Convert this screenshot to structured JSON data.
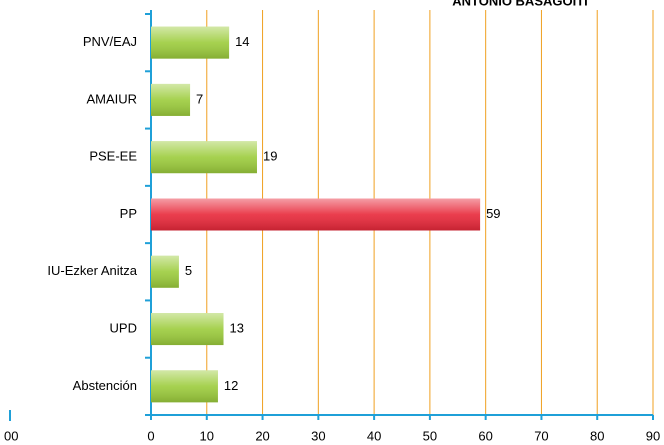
{
  "chart_data": {
    "type": "bar",
    "orientation": "horizontal",
    "title": "ANTONIO BASAGOITI",
    "categories": [
      "PNV/EAJ",
      "AMAIUR",
      "PSE-EE",
      "PP",
      "IU-Ezker Anitza",
      "UPD",
      "Abstención"
    ],
    "values": [
      14,
      7,
      19,
      59,
      5,
      13,
      12
    ],
    "colors": [
      "#9ccc3c",
      "#9ccc3c",
      "#9ccc3c",
      "#e8283a",
      "#9ccc3c",
      "#9ccc3c",
      "#9ccc3c"
    ],
    "xlim": [
      0,
      90
    ],
    "xticks": [
      0,
      10,
      20,
      30,
      40,
      50,
      60,
      70,
      80,
      90
    ],
    "grid": true,
    "grid_color": "#f0a020",
    "axis_color": "#1fa0d8",
    "annotation": "00"
  }
}
